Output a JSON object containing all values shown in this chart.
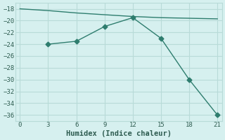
{
  "line1_x": [
    0,
    3,
    6,
    9,
    12,
    15,
    18,
    21
  ],
  "line1_y": [
    -18.0,
    -18.3,
    -18.7,
    -19.0,
    -19.3,
    -19.5,
    -19.6,
    -19.7
  ],
  "line2_x": [
    3,
    6,
    9,
    12,
    15,
    18,
    21
  ],
  "line2_y": [
    -24.0,
    -23.5,
    -21.0,
    -19.5,
    -23.0,
    -30.0,
    -36.0
  ],
  "line_color": "#2e7d6e",
  "bg_color": "#d6f0ef",
  "grid_color": "#b8dbd8",
  "xlabel": "Humidex (Indice chaleur)",
  "xlim": [
    -0.5,
    21.5
  ],
  "ylim": [
    -37.0,
    -17.0
  ],
  "xticks": [
    0,
    3,
    6,
    9,
    12,
    15,
    18,
    21
  ],
  "yticks": [
    -36,
    -34,
    -32,
    -30,
    -28,
    -26,
    -24,
    -22,
    -20,
    -18
  ],
  "font_color": "#2e5c50",
  "marker": "D",
  "markersize": 3.5,
  "linewidth": 1.0
}
